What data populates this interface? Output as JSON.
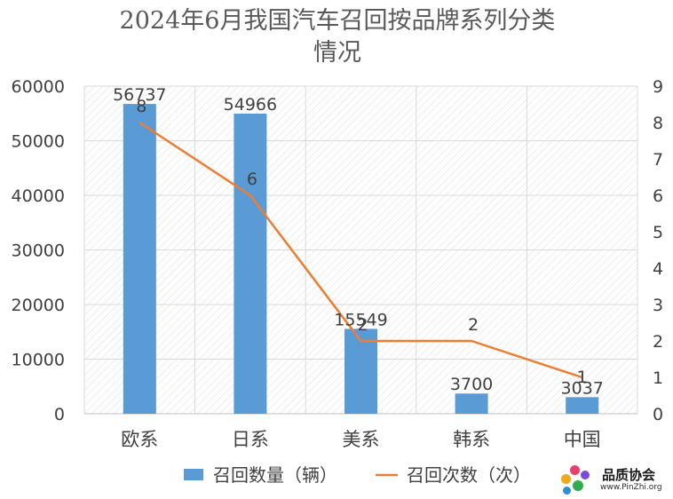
{
  "title": "2024年6月我国汽车召回按品牌系列分类情况",
  "chart_data": {
    "type": "bar+line",
    "title": "2024年6月我国汽车召回按品牌系列分类情况",
    "categories": [
      "欧系",
      "日系",
      "美系",
      "韩系",
      "中国"
    ],
    "series": [
      {
        "name": "召回数量（辆）",
        "type": "bar",
        "axis": "left",
        "color": "#5B9BD5",
        "values": [
          56737,
          54966,
          15549,
          3700,
          3037
        ]
      },
      {
        "name": "召回次数（次）",
        "type": "line",
        "axis": "right",
        "color": "#ED7D31",
        "values": [
          8,
          6,
          2,
          2,
          1
        ]
      }
    ],
    "y_left": {
      "min": 0,
      "max": 60000,
      "ticks": [
        0,
        10000,
        20000,
        30000,
        40000,
        50000,
        60000
      ]
    },
    "y_right": {
      "min": 0,
      "max": 9,
      "ticks": [
        0,
        1,
        2,
        3,
        4,
        5,
        6,
        7,
        8,
        9
      ]
    },
    "grid": true,
    "legend_position": "bottom"
  },
  "logo": {
    "name": "品质协会",
    "url": "www.PinZhi.org"
  }
}
